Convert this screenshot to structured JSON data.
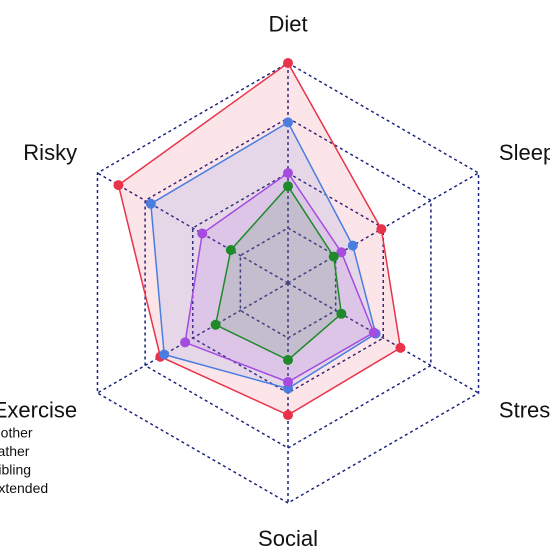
{
  "chart_data": {
    "type": "radar",
    "categories": [
      "Diet",
      "Sleep",
      "Stress",
      "Social",
      "Exercise",
      "Risky"
    ],
    "series": [
      {
        "name": "Mother",
        "color": "#e8334a",
        "values": [
          100,
          49,
          59,
          60,
          67,
          89
        ]
      },
      {
        "name": "Father",
        "color": "#4a7de0",
        "values": [
          73,
          34,
          46,
          48,
          65,
          72
        ]
      },
      {
        "name": "Sibling",
        "color": "#a44be0",
        "values": [
          50,
          28,
          45,
          45,
          54,
          45
        ]
      },
      {
        "name": "Extended",
        "color": "#1e8a2a",
        "values": [
          44,
          24,
          28,
          35,
          38,
          30
        ]
      }
    ],
    "rlim": [
      0,
      100
    ],
    "rticks": [
      25,
      50,
      75,
      100
    ],
    "grid": true,
    "grid_color": "#1a237e",
    "legend": "lower left"
  }
}
